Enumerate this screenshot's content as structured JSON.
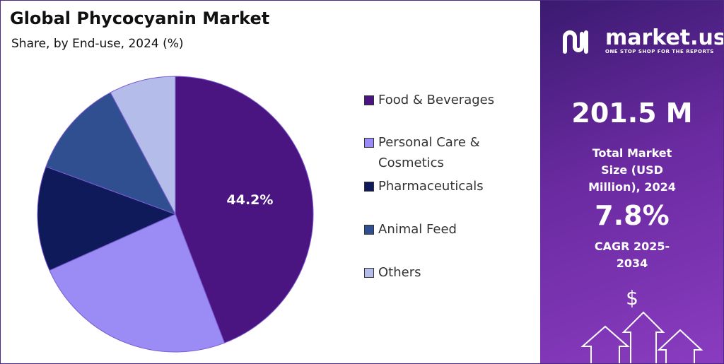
{
  "chart_data": {
    "type": "pie",
    "title": "Global Phycocyanin Market",
    "subtitle": "Share, by End-use, 2024 (%)",
    "categories": [
      "Food & Beverages",
      "Personal Care & Cosmetics",
      "Pharmaceuticals",
      "Animal Feed",
      "Others"
    ],
    "values": [
      44.2,
      24.1,
      12.3,
      11.6,
      7.8
    ],
    "value_labels": [
      "44.2%",
      null,
      null,
      null,
      null
    ],
    "colors": [
      "#4a1580",
      "#9a8cf4",
      "#0f1a5b",
      "#2f4f90",
      "#b4bde9"
    ]
  },
  "sidebar": {
    "brand": "market.us",
    "tagline": "ONE STOP SHOP FOR THE REPORTS",
    "market_size": "201.5 M",
    "market_size_label": "Total Market Size (USD Million), 2024",
    "cagr": "7.8%",
    "cagr_label": "CAGR 2025-2034",
    "icon": "$"
  }
}
